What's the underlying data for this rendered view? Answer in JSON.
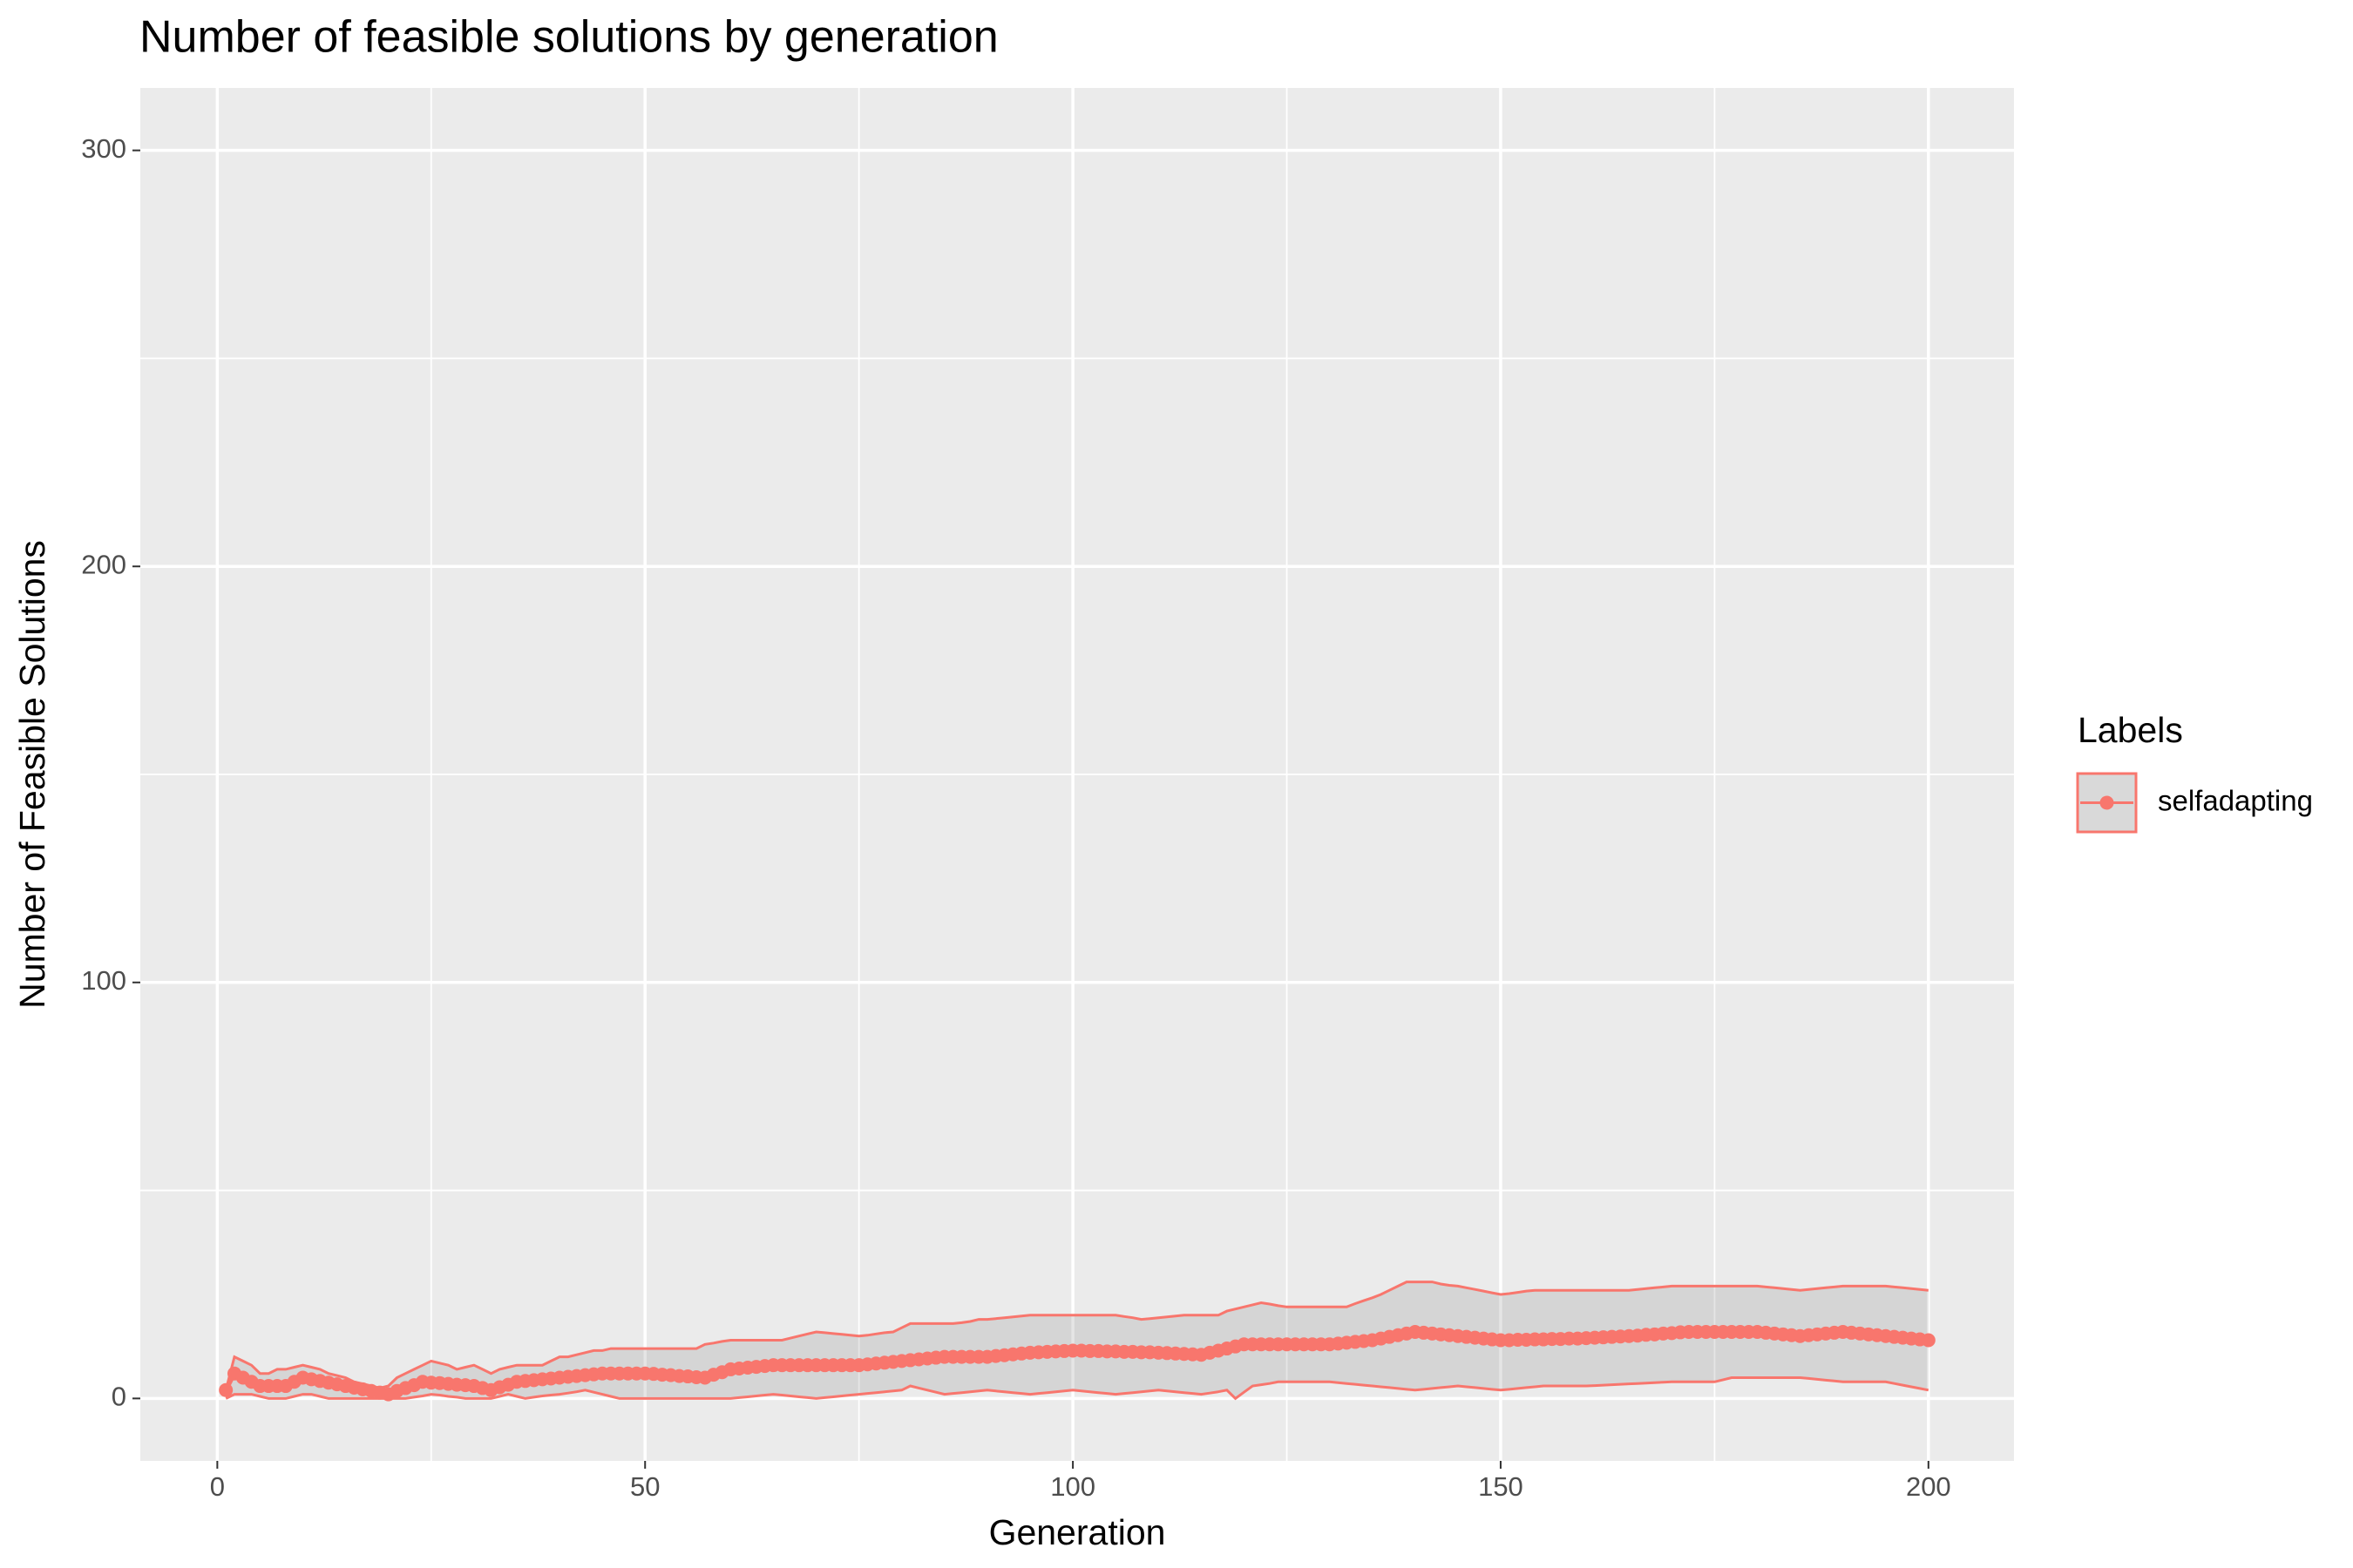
{
  "chart_data": {
    "type": "line",
    "title": "Number of feasible solutions by generation",
    "x_label": "Generation",
    "y_label": "Number of Feasible Solutions",
    "legend_title": "Labels",
    "xlim": [
      -9,
      210
    ],
    "ylim": [
      -15,
      315
    ],
    "xticks": [
      0,
      50,
      100,
      150,
      200
    ],
    "yticks": [
      0,
      100,
      200,
      300
    ],
    "xminor": [
      25,
      75,
      125,
      175
    ],
    "yminor": [
      50,
      150,
      250
    ],
    "grid": true,
    "legend": "right",
    "x": [
      1,
      2,
      3,
      4,
      5,
      6,
      7,
      8,
      9,
      10,
      11,
      12,
      13,
      14,
      15,
      16,
      17,
      18,
      19,
      20,
      21,
      22,
      23,
      24,
      25,
      26,
      27,
      28,
      29,
      30,
      31,
      32,
      33,
      34,
      35,
      36,
      37,
      38,
      39,
      40,
      41,
      42,
      43,
      44,
      45,
      46,
      47,
      48,
      49,
      50,
      51,
      52,
      53,
      54,
      55,
      56,
      57,
      58,
      59,
      60,
      61,
      62,
      63,
      64,
      65,
      66,
      67,
      68,
      69,
      70,
      71,
      72,
      73,
      74,
      75,
      76,
      77,
      78,
      79,
      80,
      81,
      82,
      83,
      84,
      85,
      86,
      87,
      88,
      89,
      90,
      91,
      92,
      93,
      94,
      95,
      96,
      97,
      98,
      99,
      100,
      101,
      102,
      103,
      104,
      105,
      106,
      107,
      108,
      109,
      110,
      111,
      112,
      113,
      114,
      115,
      116,
      117,
      118,
      119,
      120,
      121,
      122,
      123,
      124,
      125,
      126,
      127,
      128,
      129,
      130,
      131,
      132,
      133,
      134,
      135,
      136,
      137,
      138,
      139,
      140,
      141,
      142,
      143,
      144,
      145,
      146,
      147,
      148,
      149,
      150,
      151,
      152,
      153,
      154,
      155,
      156,
      157,
      158,
      159,
      160,
      161,
      162,
      163,
      164,
      165,
      166,
      167,
      168,
      169,
      170,
      171,
      172,
      173,
      174,
      175,
      176,
      177,
      178,
      179,
      180,
      181,
      182,
      183,
      184,
      185,
      186,
      187,
      188,
      189,
      190,
      191,
      192,
      193,
      194,
      195,
      196,
      197,
      198,
      199,
      200
    ],
    "series": [
      {
        "name": "selfadapting",
        "color": "#F8766D",
        "values": [
          2,
          6,
          5,
          4,
          3,
          3,
          3,
          3,
          4,
          5,
          4.6,
          4.2,
          3.8,
          3.4,
          3,
          2.6,
          2.2,
          1.8,
          1.4,
          1,
          1.8,
          2.5,
          3.2,
          4,
          3.8,
          3.7,
          3.5,
          3.3,
          3.2,
          3,
          2.5,
          2,
          2.7,
          3.3,
          4,
          4.2,
          4.4,
          4.6,
          4.8,
          5,
          5.2,
          5.4,
          5.6,
          5.8,
          6,
          6,
          6,
          6,
          6,
          6,
          5.9,
          5.7,
          5.6,
          5.4,
          5.3,
          5.1,
          5,
          5.7,
          6.3,
          7,
          7.2,
          7.4,
          7.6,
          7.8,
          8,
          8,
          8,
          8,
          8,
          8,
          8,
          8,
          8,
          8,
          8,
          8.2,
          8.4,
          8.6,
          8.8,
          9,
          9.2,
          9.4,
          9.6,
          9.8,
          10,
          10,
          10,
          10,
          10,
          10,
          10.2,
          10.4,
          10.6,
          10.8,
          11,
          11.1,
          11.2,
          11.3,
          11.4,
          11.5,
          11.5,
          11.4,
          11.4,
          11.3,
          11.3,
          11.2,
          11.2,
          11.1,
          11.1,
          11,
          10.9,
          10.8,
          10.7,
          10.6,
          10.5,
          11,
          11.5,
          12,
          12.5,
          13,
          13,
          13,
          13,
          13,
          13,
          13,
          13,
          13,
          13,
          13,
          13.2,
          13.4,
          13.6,
          13.8,
          14,
          14.4,
          14.8,
          15.2,
          15.6,
          16,
          15.8,
          15.6,
          15.4,
          15.2,
          15,
          14.8,
          14.6,
          14.4,
          14.2,
          14,
          14,
          14.1,
          14.1,
          14.2,
          14.2,
          14.3,
          14.3,
          14.4,
          14.4,
          14.5,
          14.6,
          14.7,
          14.8,
          14.9,
          15,
          15.1,
          15.3,
          15.4,
          15.6,
          15.7,
          15.9,
          16,
          16,
          16,
          16,
          16,
          16,
          16,
          16,
          16,
          15.8,
          15.6,
          15.4,
          15.2,
          15,
          15.2,
          15.4,
          15.6,
          15.8,
          16,
          15.8,
          15.6,
          15.4,
          15.2,
          15,
          14.8,
          14.6,
          14.4,
          14.2,
          14
        ],
        "ribbon": {
          "upper": [
            2,
            10,
            9,
            8,
            6,
            6,
            7,
            7,
            7.5,
            8,
            7.5,
            7,
            6,
            5.5,
            5,
            4,
            3.5,
            3,
            2.5,
            3,
            5,
            6,
            7,
            8,
            9,
            8.5,
            8,
            7,
            7.5,
            8,
            7,
            6,
            7,
            7.5,
            8,
            8,
            8,
            8,
            9,
            10,
            10,
            10.5,
            11,
            11.5,
            11.5,
            12,
            12,
            12,
            12,
            12,
            12,
            12,
            12,
            12,
            12,
            12,
            13,
            13.3,
            13.7,
            14,
            14,
            14,
            14,
            14,
            14,
            14,
            14.5,
            15,
            15.5,
            16,
            15.8,
            15.6,
            15.4,
            15.2,
            15,
            15.2,
            15.5,
            15.8,
            16,
            17,
            18,
            18,
            18,
            18,
            18,
            18,
            18.2,
            18.5,
            19,
            19,
            19.2,
            19.4,
            19.6,
            19.8,
            20,
            20,
            20,
            20,
            20,
            20,
            20,
            20,
            20,
            20,
            20,
            19.7,
            19.4,
            19,
            19.2,
            19.4,
            19.6,
            19.8,
            20,
            20,
            20,
            20,
            20,
            21,
            21.5,
            22,
            22.5,
            23,
            22.7,
            22.3,
            22,
            22,
            22,
            22,
            22,
            22,
            22,
            22,
            22.8,
            23.5,
            24.2,
            25,
            26,
            27,
            28,
            28,
            28,
            28,
            27.5,
            27.2,
            27,
            26.6,
            26.2,
            25.8,
            25.4,
            25,
            25.2,
            25.5,
            25.8,
            26,
            26,
            26,
            26,
            26,
            26,
            26,
            26,
            26,
            26,
            26,
            26,
            26.2,
            26.4,
            26.6,
            26.8,
            27,
            27,
            27,
            27,
            27,
            27,
            27,
            27,
            27,
            27,
            27,
            26.8,
            26.6,
            26.4,
            26.2,
            26,
            26.2,
            26.4,
            26.6,
            26.8,
            27,
            27,
            27,
            27,
            27,
            27,
            26.8,
            26.6,
            26.4,
            26.2,
            26
          ],
          "lower": [
            0,
            1,
            1,
            1,
            0.5,
            0,
            0,
            0,
            0.5,
            1,
            1,
            0.5,
            0,
            0,
            0,
            0,
            0,
            0,
            0,
            0,
            0,
            0,
            0.3,
            0.6,
            1,
            0.8,
            0.5,
            0.3,
            0,
            0,
            0,
            0,
            0.5,
            1,
            0.5,
            0,
            0.3,
            0.6,
            0.8,
            1,
            1.3,
            1.6,
            2,
            1.5,
            1,
            0.5,
            0,
            0,
            0,
            0,
            0,
            0,
            0,
            0,
            0,
            0,
            0,
            0,
            0,
            0,
            0.2,
            0.4,
            0.6,
            0.8,
            1,
            0.8,
            0.6,
            0.4,
            0.2,
            0,
            0.2,
            0.4,
            0.6,
            0.8,
            1,
            1.2,
            1.4,
            1.6,
            1.8,
            2,
            3,
            2.5,
            2,
            1.5,
            1,
            1.2,
            1.4,
            1.6,
            1.8,
            2,
            1.8,
            1.6,
            1.4,
            1.2,
            1,
            1.2,
            1.4,
            1.6,
            1.8,
            2,
            1.8,
            1.6,
            1.4,
            1.2,
            1,
            1.2,
            1.4,
            1.6,
            1.8,
            2,
            1.8,
            1.6,
            1.4,
            1.2,
            1,
            1.3,
            1.6,
            2,
            0,
            1.5,
            3,
            3.3,
            3.6,
            4,
            4,
            4,
            4,
            4,
            4,
            4,
            3.8,
            3.6,
            3.4,
            3.2,
            3,
            2.8,
            2.6,
            2.4,
            2.2,
            2,
            2.2,
            2.4,
            2.6,
            2.8,
            3,
            2.8,
            2.6,
            2.4,
            2.2,
            2,
            2.2,
            2.4,
            2.6,
            2.8,
            3,
            3,
            3,
            3,
            3,
            3,
            3.1,
            3.2,
            3.3,
            3.4,
            3.5,
            3.6,
            3.7,
            3.8,
            3.9,
            4,
            4,
            4,
            4,
            4,
            4,
            4.5,
            5,
            5,
            5,
            5,
            5,
            5,
            5,
            5,
            5,
            4.8,
            4.6,
            4.4,
            4.2,
            4,
            4,
            4,
            4,
            4,
            4,
            3.6,
            3.2,
            2.8,
            2.4,
            2
          ]
        }
      }
    ]
  }
}
